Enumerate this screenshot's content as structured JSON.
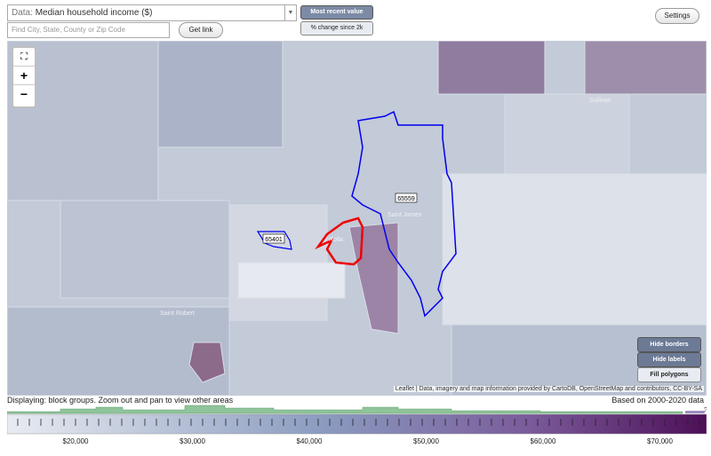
{
  "toolbar": {
    "data_prefix": "Data:",
    "data_value": "Median household income ($)",
    "search_placeholder": "Find City, State, County or Zip Code",
    "get_link": "Get link",
    "most_recent": "Most recent value",
    "pct_change": "% change since 2k",
    "settings": "Settings"
  },
  "map": {
    "zoom_in": "+",
    "zoom_out": "−",
    "zip_labels": [
      "65559",
      "65401"
    ],
    "place_labels": [
      "Saint James",
      "Rolla",
      "Saint Robert",
      "Sullivan"
    ],
    "buttons": [
      "Hide borders",
      "Hide labels",
      "Fill polygons"
    ],
    "attribution": "Leaflet | Data, imagery and map information provided by CartoDB, OpenStreetMap and contributors, CC-BY-SA"
  },
  "footer": {
    "displaying": "Displaying: block groups. Zoom out and pan to view other areas",
    "based_on": "Based on 2000-2020 data",
    "help": "?",
    "scale_labels": [
      "$20,000",
      "$30,000",
      "$40,000",
      "$50,000",
      "$60,000",
      "$70,000"
    ]
  }
}
